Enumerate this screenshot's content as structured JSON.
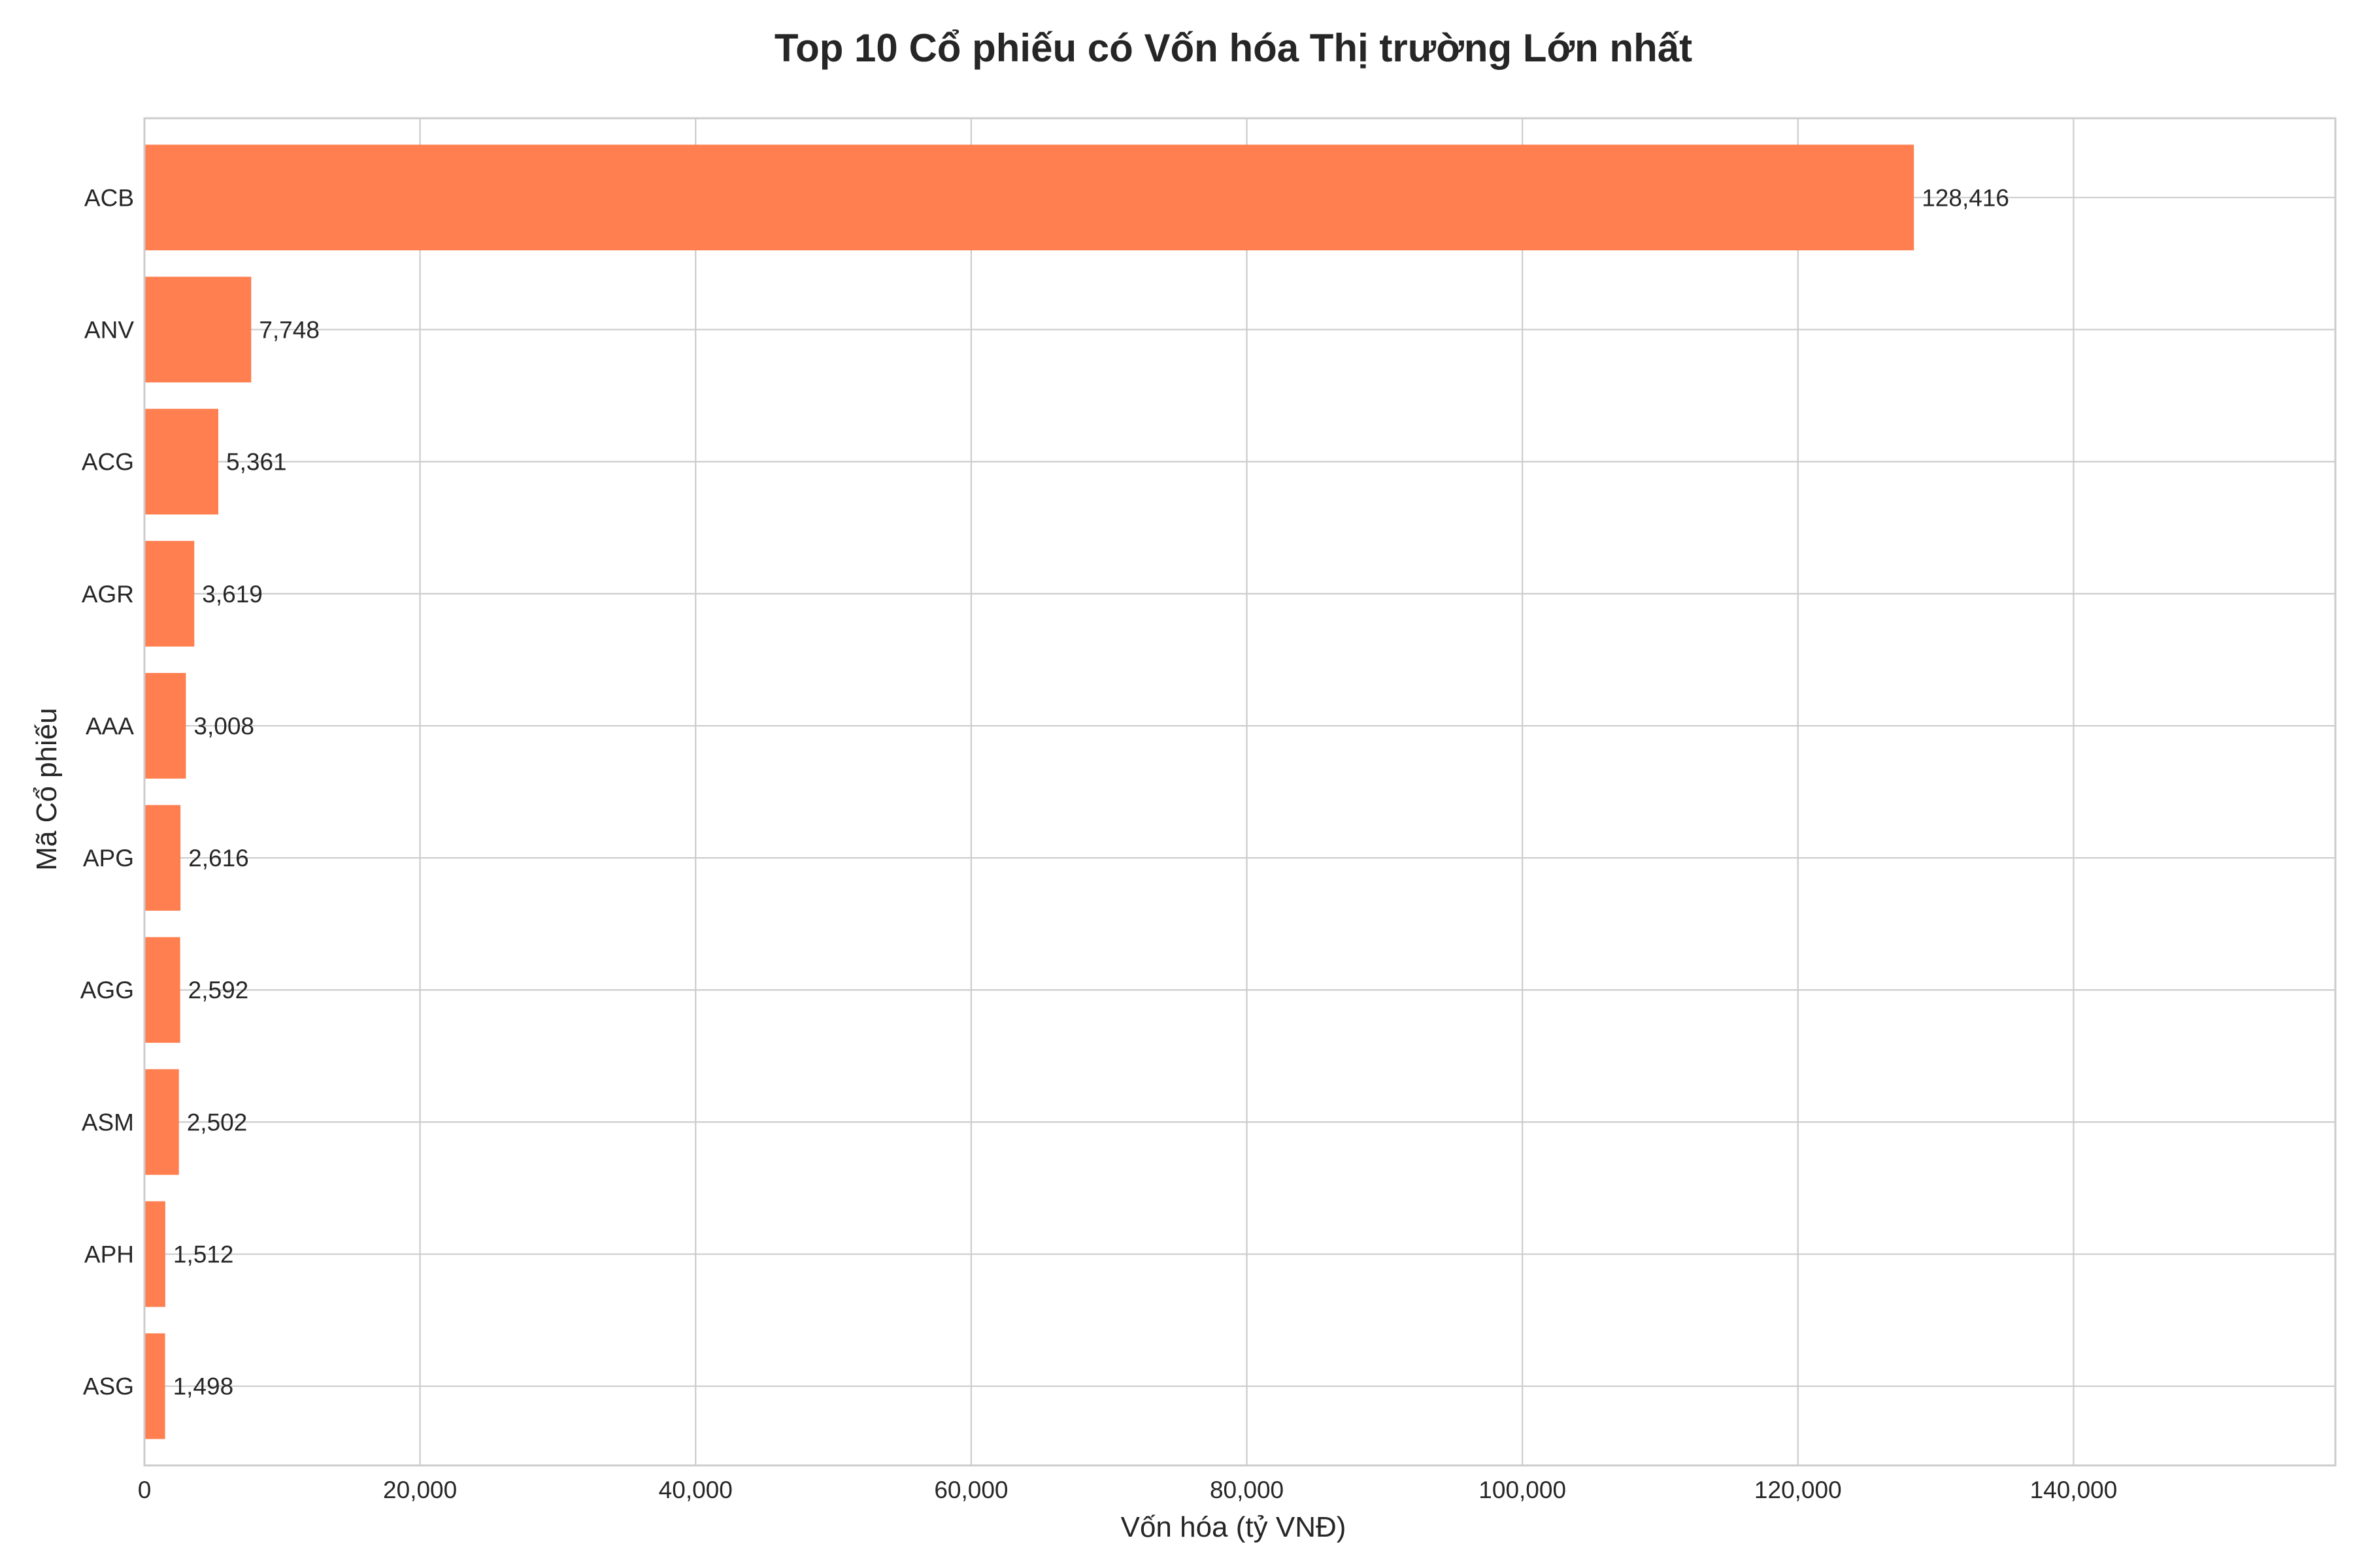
{
  "chart_data": {
    "type": "bar",
    "orientation": "horizontal",
    "title": "Top 10 Cổ phiếu có Vốn hóa Thị trường Lớn nhất",
    "xlabel": "Vốn hóa (tỷ VNĐ)",
    "ylabel": "Mã Cổ phiếu",
    "categories": [
      "ACB",
      "ANV",
      "ACG",
      "AGR",
      "AAA",
      "APG",
      "AGG",
      "ASM",
      "APH",
      "ASG"
    ],
    "values": [
      128416,
      7748,
      5361,
      3619,
      3008,
      2616,
      2592,
      2502,
      1512,
      1498
    ],
    "data_labels": [
      "128,416",
      "7,748",
      "5,361",
      "3,619",
      "3,008",
      "2,616",
      "2,592",
      "2,502",
      "1,512",
      "1,498"
    ],
    "xlim": [
      0,
      159000
    ],
    "xticks": [
      0,
      20000,
      40000,
      60000,
      80000,
      100000,
      120000,
      140000
    ],
    "xtick_labels": [
      "0",
      "20,000",
      "40,000",
      "60,000",
      "80,000",
      "100,000",
      "120,000",
      "140,000"
    ],
    "grid": true,
    "bar_color": "#ff7f50"
  }
}
